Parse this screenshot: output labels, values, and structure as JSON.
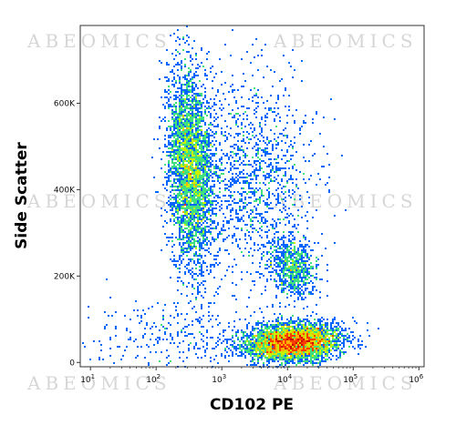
{
  "chart_data": {
    "type": "scatter",
    "plot_style": "flow cytometry density dot plot (pseudocolor)",
    "xlabel": "CD102 PE",
    "ylabel": "Side Scatter",
    "x_scale": "log",
    "x_range": [
      7,
      1200000
    ],
    "y_range": [
      -10000,
      780000
    ],
    "x_ticks": [
      {
        "base": "10",
        "exp": "1",
        "value": 10
      },
      {
        "base": "10",
        "exp": "2",
        "value": 100
      },
      {
        "base": "10",
        "exp": "3",
        "value": 1000
      },
      {
        "base": "10",
        "exp": "4",
        "value": 10000
      },
      {
        "base": "10",
        "exp": "5",
        "value": 100000
      },
      {
        "base": "10",
        "exp": "6",
        "value": 1000000
      }
    ],
    "y_ticks": [
      {
        "label": "0",
        "value": 0
      },
      {
        "label": "200K",
        "value": 200000
      },
      {
        "label": "400K",
        "value": 400000
      },
      {
        "label": "600K",
        "value": 600000
      }
    ],
    "populations": [
      {
        "x_center": 330,
        "x_spread_decades": 0.17,
        "y_center": 450000,
        "y_spread": 115000,
        "events": 3400,
        "tilt": -0.35
      },
      {
        "x_center": 3000,
        "x_spread_decades": 0.45,
        "y_center": 430000,
        "y_spread": 120000,
        "events": 1300,
        "tilt": 0
      },
      {
        "x_center": 12000,
        "x_spread_decades": 0.18,
        "y_center": 220000,
        "y_spread": 35000,
        "events": 700,
        "tilt": -0.4
      },
      {
        "x_center": 12000,
        "x_spread_decades": 0.35,
        "y_center": 45000,
        "y_spread": 22000,
        "events": 4200,
        "tilt": 0.2
      },
      {
        "x_center": 200,
        "x_spread_decades": 0.7,
        "y_center": 60000,
        "y_spread": 45000,
        "events": 300,
        "tilt": 0
      }
    ],
    "color_scale": [
      "#0000c8",
      "#0066ff",
      "#00c0ff",
      "#40e080",
      "#c8f000",
      "#ffb000",
      "#ff3c00",
      "#c80000"
    ],
    "watermark": "ABEOMICS",
    "grid": false,
    "legend": "none"
  }
}
